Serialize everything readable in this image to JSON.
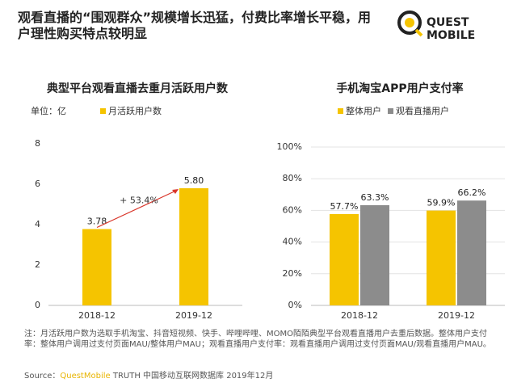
{
  "header": {
    "title": "观看直播的“围观群众”规模增长迅猛，付费比率增长平稳，用户理性购买特点较明显",
    "logo": "QUEST MOBILE"
  },
  "chart_data": [
    {
      "type": "bar",
      "title": "典型平台观看直播去重月活跃用户数",
      "unit_label": "单位：亿",
      "categories": [
        "2018-12",
        "2019-12"
      ],
      "series": [
        {
          "name": "月活跃用户数",
          "color": "#f5c400",
          "values": [
            3.78,
            5.8
          ],
          "value_labels": [
            "3.78",
            "5.80"
          ]
        }
      ],
      "ylim": [
        0,
        8
      ],
      "yticks": [
        0,
        2,
        4,
        6,
        8
      ],
      "grid": false,
      "annotation": "+ 53.4%"
    },
    {
      "type": "bar",
      "title": "手机淘宝APP用户支付率",
      "categories": [
        "2018-12",
        "2019-12"
      ],
      "series": [
        {
          "name": "整体用户",
          "color": "#f5c400",
          "values": [
            57.7,
            59.9
          ],
          "value_labels": [
            "57.7%",
            "59.9%"
          ]
        },
        {
          "name": "观看直播用户",
          "color": "#8c8c8c",
          "values": [
            63.3,
            66.2
          ],
          "value_labels": [
            "63.3%",
            "66.2%"
          ]
        }
      ],
      "ylim": [
        0,
        100
      ],
      "yticks": [
        {
          "value": 0,
          "label": "0%"
        },
        {
          "value": 20,
          "label": "20%"
        },
        {
          "value": 40,
          "label": "40%"
        },
        {
          "value": 60,
          "label": "60%"
        },
        {
          "value": 80,
          "label": "80%"
        },
        {
          "value": 100,
          "label": "100%"
        }
      ],
      "grid": true
    }
  ],
  "note": "注：月活跃用户数为选取手机淘宝、抖音短视频、快手、哔哩哔哩、MOMO陌陌典型平台观看直播用户去重后数据。整体用户支付率：整体用户调用过支付页面MAU/整体用户MAU；观看直播用户支付率：观看直播用户调用过支付页面MAU/观看直播用户MAU。",
  "source": {
    "label": "Source：",
    "brand": "QuestMobile",
    "text": "TRUTH 中国移动互联网数据库 2019年12月"
  }
}
